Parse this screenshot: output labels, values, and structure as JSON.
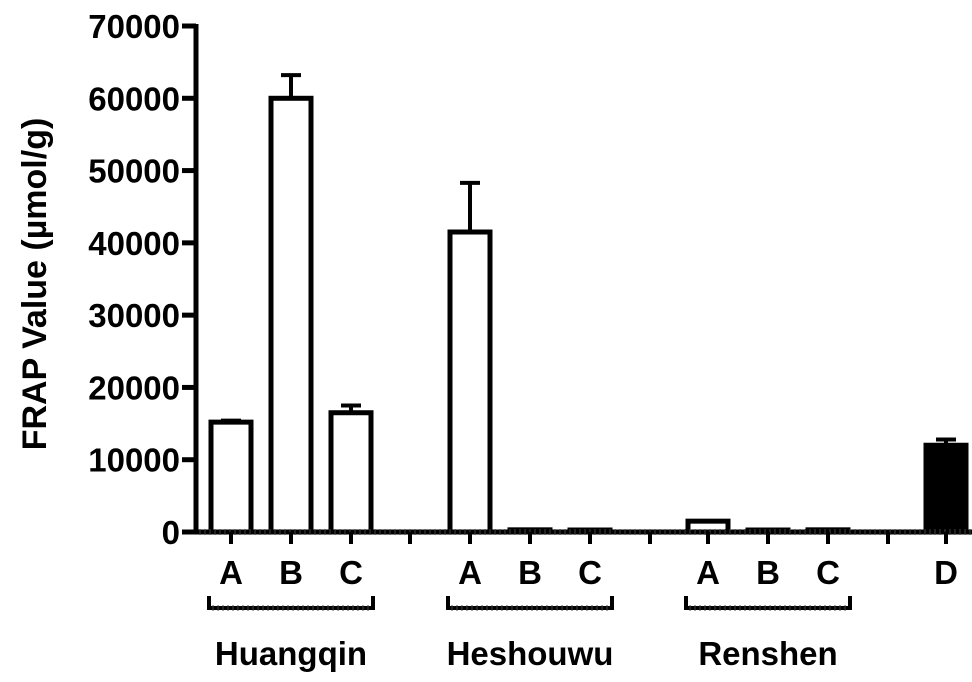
{
  "chart_data": {
    "type": "bar",
    "ylabel": "FRAP Value (µmol/g)",
    "ylim": [
      0,
      70000
    ],
    "yticks": [
      0,
      10000,
      20000,
      30000,
      40000,
      50000,
      60000,
      70000
    ],
    "ytick_labels": [
      "0",
      "10000",
      "20000",
      "30000",
      "40000",
      "50000",
      "60000",
      "70000"
    ],
    "grid": false,
    "groups": [
      {
        "name": "Huangqin",
        "bars": [
          {
            "label": "A",
            "value": 15200,
            "error": 200,
            "fill": "#ffffff"
          },
          {
            "label": "B",
            "value": 60000,
            "error": 3200,
            "fill": "#ffffff"
          },
          {
            "label": "C",
            "value": 16500,
            "error": 1000,
            "fill": "#ffffff"
          }
        ]
      },
      {
        "name": "Heshouwu",
        "bars": [
          {
            "label": "A",
            "value": 41500,
            "error": 6800,
            "fill": "#ffffff"
          },
          {
            "label": "B",
            "value": 300,
            "error": 0,
            "fill": "#ffffff"
          },
          {
            "label": "C",
            "value": 100,
            "error": 0,
            "fill": "#ffffff"
          }
        ]
      },
      {
        "name": "Renshen",
        "bars": [
          {
            "label": "A",
            "value": 1500,
            "error": 0,
            "fill": "#ffffff"
          },
          {
            "label": "B",
            "value": 200,
            "error": 0,
            "fill": "#ffffff"
          },
          {
            "label": "C",
            "value": 300,
            "error": 0,
            "fill": "#ffffff"
          }
        ]
      },
      {
        "name": "",
        "bars": [
          {
            "label": "D",
            "value": 12000,
            "error": 800,
            "fill": "#000000"
          }
        ]
      }
    ]
  }
}
